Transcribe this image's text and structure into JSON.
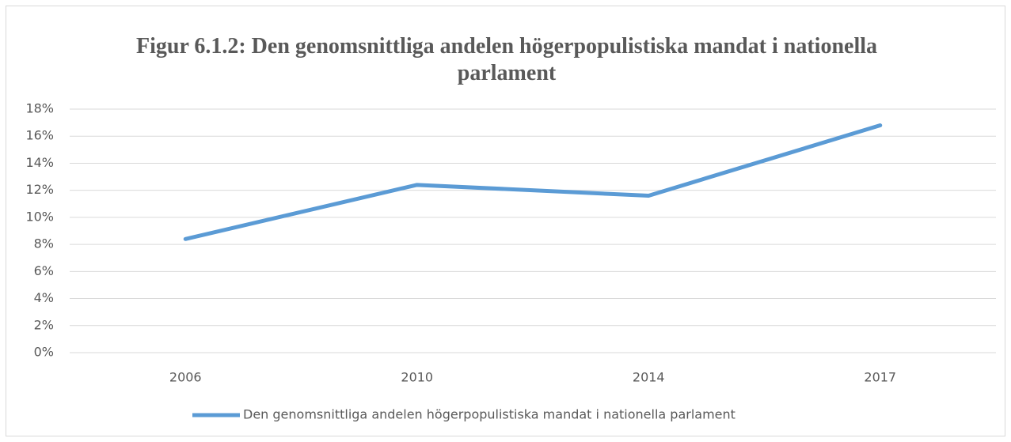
{
  "chart_data": {
    "type": "line",
    "title": "Figur 6.1.2: Den genomsnittliga andelen högerpopulistiska mandat i nationella parlament",
    "categories": [
      "2006",
      "2010",
      "2014",
      "2017"
    ],
    "series": [
      {
        "name": "Den genomsnittliga andelen högerpopulistiska mandat i nationella parlament",
        "color": "#5b9bd5",
        "values": [
          8.4,
          12.4,
          11.6,
          16.8
        ]
      }
    ],
    "ylim": [
      0,
      18
    ],
    "yticks": [
      {
        "value": 0,
        "label": "0%"
      },
      {
        "value": 2,
        "label": "2%"
      },
      {
        "value": 4,
        "label": "4%"
      },
      {
        "value": 6,
        "label": "6%"
      },
      {
        "value": 8,
        "label": "8%"
      },
      {
        "value": 10,
        "label": "10%"
      },
      {
        "value": 12,
        "label": "12%"
      },
      {
        "value": 14,
        "label": "14%"
      },
      {
        "value": 16,
        "label": "16%"
      },
      {
        "value": 18,
        "label": "18%"
      }
    ],
    "grid": true,
    "legend": "bottom"
  }
}
